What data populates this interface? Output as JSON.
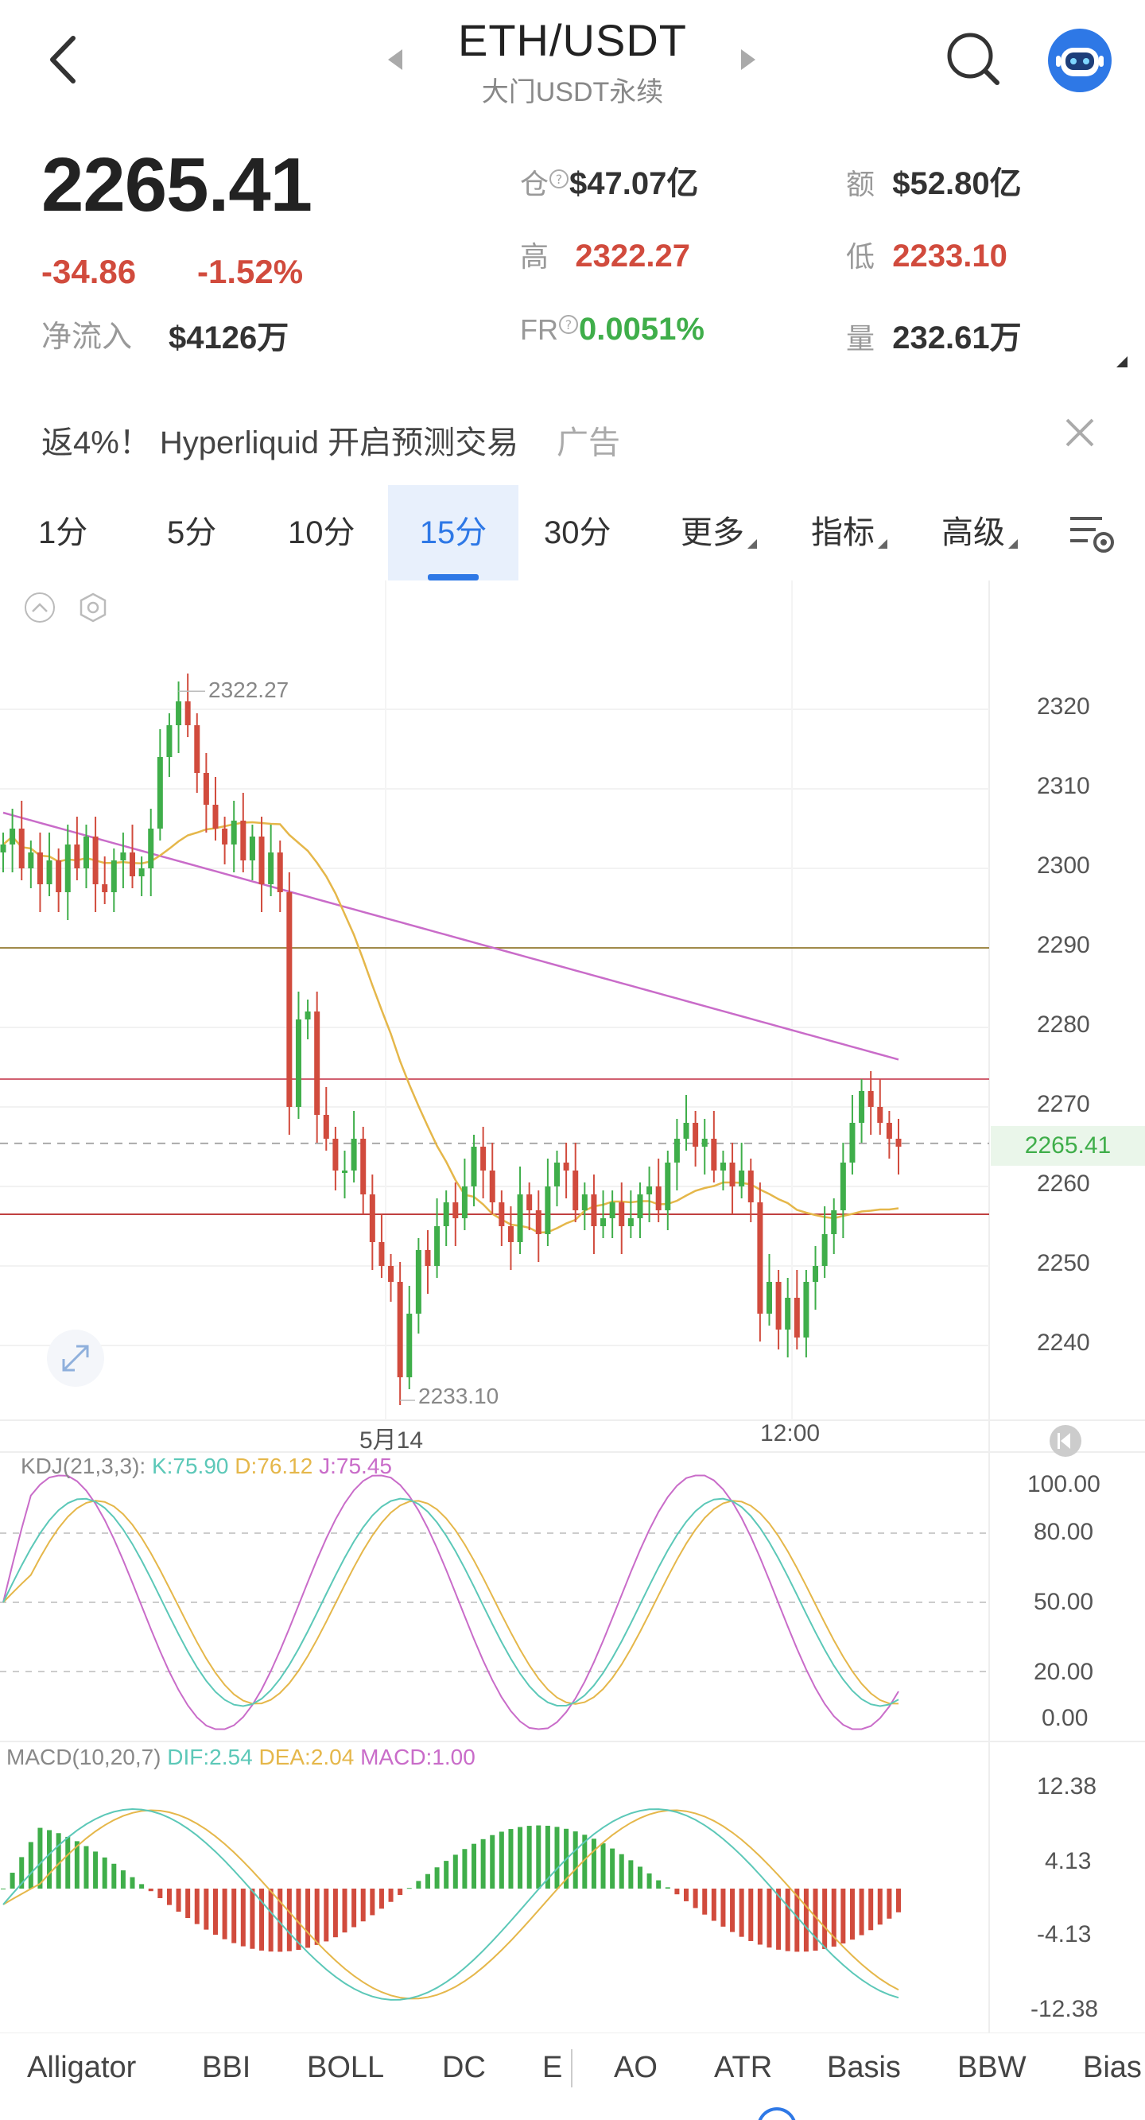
{
  "header": {
    "title": "ETH/USDT",
    "subtitle": "大门USDT永续"
  },
  "price": {
    "last": "2265.41",
    "change_abs": "-34.86",
    "change_pct": "-1.52%",
    "netflow_label": "净流入",
    "netflow_value": "$4126万"
  },
  "stats": {
    "oi_label": "仓",
    "oi_value": "$47.07亿",
    "amount_label": "额",
    "amount_value": "$52.80亿",
    "high_label": "高",
    "high_value": "2322.27",
    "low_label": "低",
    "low_value": "2233.10",
    "fr_label": "FR",
    "fr_value": "0.0051%",
    "vol_label": "量",
    "vol_value": "232.61万"
  },
  "ad": {
    "text": "返4%！ Hyperliquid 开启预测交易",
    "tag": "广告"
  },
  "tabs": [
    "1分",
    "5分",
    "10分",
    "15分",
    "30分",
    "更多",
    "指标",
    "高级"
  ],
  "active_tab": "15分",
  "chart": {
    "high_marker": "2322.27",
    "low_marker": "2233.10",
    "price_axis": [
      "2320",
      "2310",
      "2300",
      "2290",
      "2280",
      "2270",
      "2260",
      "2250",
      "2240"
    ],
    "current_price": "2265.41",
    "time_axis": [
      "5月14",
      "12:00"
    ],
    "colors": {
      "up": "#3fae4a",
      "down": "#d14b3d",
      "ma_long": "#c96cc9",
      "ma_short": "#e5b74a"
    }
  },
  "kdj": {
    "label": "KDJ(21,3,3):",
    "k": "K:75.90",
    "d": "D:76.12",
    "j": "J:75.45",
    "axis": [
      "100.00",
      "80.00",
      "50.00",
      "20.00",
      "0.00"
    ]
  },
  "macd": {
    "label": "MACD(10,20,7)",
    "dif": "DIF:2.54",
    "dea": "DEA:2.04",
    "macd": "MACD:1.00",
    "axis": [
      "12.38",
      "4.13",
      "-4.13",
      "-12.38"
    ]
  },
  "indicators": [
    "Alligator",
    "BBI",
    "BOLL",
    "DC",
    "E",
    "AO",
    "ATR",
    "Basis",
    "BBW",
    "Bias"
  ]
}
